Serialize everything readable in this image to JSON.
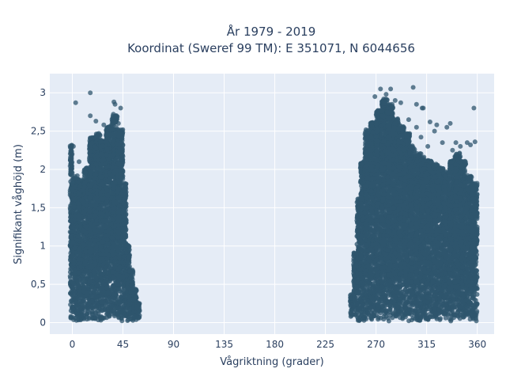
{
  "chart_data": {
    "type": "scatter",
    "title": "År 1979 - 2019",
    "subtitle": "Koordinat (Sweref 99 TM): E 351071, N 6044656",
    "xlabel": "Vågriktning (grader)",
    "ylabel": "Signifikant våghöjd (m)",
    "xlim": [
      -20,
      375
    ],
    "ylim": [
      -0.15,
      3.25
    ],
    "x_ticks": [
      0,
      45,
      90,
      135,
      180,
      225,
      270,
      315,
      360
    ],
    "x_tick_labels": [
      "0",
      "45",
      "90",
      "135",
      "180",
      "225",
      "270",
      "315",
      "360"
    ],
    "y_ticks": [
      0,
      0.5,
      1,
      1.5,
      2,
      2.5,
      3
    ],
    "y_tick_labels": [
      "0",
      "0,5",
      "1",
      "1,5",
      "2",
      "2,5",
      "3"
    ],
    "grid": true,
    "marker_color": "#2f566d",
    "density_profile": [
      {
        "x": [
          -2,
          0
        ],
        "ymax": 2.3
      },
      {
        "x": [
          0,
          5
        ],
        "ymax": 1.9
      },
      {
        "x": [
          5,
          10
        ],
        "ymax": 1.85
      },
      {
        "x": [
          10,
          15
        ],
        "ymax": 2.0
      },
      {
        "x": [
          15,
          20
        ],
        "ymax": 2.4
      },
      {
        "x": [
          20,
          25
        ],
        "ymax": 2.45
      },
      {
        "x": [
          25,
          30
        ],
        "ymax": 2.35
      },
      {
        "x": [
          30,
          35
        ],
        "ymax": 2.55
      },
      {
        "x": [
          35,
          40
        ],
        "ymax": 2.7
      },
      {
        "x": [
          40,
          45
        ],
        "ymax": 2.5
      },
      {
        "x": [
          45,
          48
        ],
        "ymax": 1.8
      },
      {
        "x": [
          48,
          51
        ],
        "ymax": 1.0
      },
      {
        "x": [
          51,
          54
        ],
        "ymax": 0.7
      },
      {
        "x": [
          54,
          57
        ],
        "ymax": 0.45
      },
      {
        "x": [
          57,
          60
        ],
        "ymax": 0.25
      },
      {
        "x": [
          247,
          250
        ],
        "ymax": 0.35
      },
      {
        "x": [
          250,
          253
        ],
        "ymax": 0.9
      },
      {
        "x": [
          253,
          256
        ],
        "ymax": 1.6
      },
      {
        "x": [
          256,
          260
        ],
        "ymax": 2.1
      },
      {
        "x": [
          260,
          265
        ],
        "ymax": 2.5
      },
      {
        "x": [
          265,
          270
        ],
        "ymax": 2.6
      },
      {
        "x": [
          270,
          275
        ],
        "ymax": 2.75
      },
      {
        "x": [
          275,
          280
        ],
        "ymax": 2.9
      },
      {
        "x": [
          280,
          285
        ],
        "ymax": 2.85
      },
      {
        "x": [
          285,
          290
        ],
        "ymax": 2.65
      },
      {
        "x": [
          290,
          295
        ],
        "ymax": 2.55
      },
      {
        "x": [
          295,
          300
        ],
        "ymax": 2.45
      },
      {
        "x": [
          300,
          305
        ],
        "ymax": 2.3
      },
      {
        "x": [
          305,
          310
        ],
        "ymax": 2.2
      },
      {
        "x": [
          310,
          315
        ],
        "ymax": 2.15
      },
      {
        "x": [
          315,
          320
        ],
        "ymax": 2.1
      },
      {
        "x": [
          320,
          325
        ],
        "ymax": 2.05
      },
      {
        "x": [
          325,
          330
        ],
        "ymax": 2.0
      },
      {
        "x": [
          330,
          335
        ],
        "ymax": 1.95
      },
      {
        "x": [
          335,
          340
        ],
        "ymax": 2.1
      },
      {
        "x": [
          340,
          345
        ],
        "ymax": 2.2
      },
      {
        "x": [
          345,
          350
        ],
        "ymax": 2.1
      },
      {
        "x": [
          350,
          355
        ],
        "ymax": 1.9
      },
      {
        "x": [
          355,
          360
        ],
        "ymax": 1.8
      }
    ],
    "outlier_points": [
      {
        "x": 3,
        "y": 2.87
      },
      {
        "x": 16,
        "y": 3.0
      },
      {
        "x": 1,
        "y": 2.3
      },
      {
        "x": 16,
        "y": 2.7
      },
      {
        "x": 21,
        "y": 2.63
      },
      {
        "x": 28,
        "y": 2.58
      },
      {
        "x": 37,
        "y": 2.88
      },
      {
        "x": 38,
        "y": 2.85
      },
      {
        "x": 43,
        "y": 2.8
      },
      {
        "x": 26,
        "y": 2.38
      },
      {
        "x": 6,
        "y": 2.1
      },
      {
        "x": 4,
        "y": 1.88
      },
      {
        "x": 34,
        "y": 2.45
      },
      {
        "x": 41,
        "y": 2.6
      },
      {
        "x": 269,
        "y": 2.95
      },
      {
        "x": 274,
        "y": 3.05
      },
      {
        "x": 279,
        "y": 2.98
      },
      {
        "x": 283,
        "y": 3.05
      },
      {
        "x": 287,
        "y": 2.9
      },
      {
        "x": 292,
        "y": 2.87
      },
      {
        "x": 303,
        "y": 3.07
      },
      {
        "x": 306,
        "y": 2.85
      },
      {
        "x": 311,
        "y": 2.8
      },
      {
        "x": 312,
        "y": 2.8
      },
      {
        "x": 318,
        "y": 2.62
      },
      {
        "x": 324,
        "y": 2.58
      },
      {
        "x": 333,
        "y": 2.55
      },
      {
        "x": 336,
        "y": 2.6
      },
      {
        "x": 357,
        "y": 2.8
      },
      {
        "x": 299,
        "y": 2.65
      },
      {
        "x": 306,
        "y": 2.55
      },
      {
        "x": 322,
        "y": 2.5
      },
      {
        "x": 329,
        "y": 2.35
      },
      {
        "x": 341,
        "y": 2.35
      },
      {
        "x": 345,
        "y": 2.3
      },
      {
        "x": 351,
        "y": 2.35
      },
      {
        "x": 354,
        "y": 2.32
      },
      {
        "x": 358,
        "y": 2.36
      },
      {
        "x": 310,
        "y": 2.42
      },
      {
        "x": 316,
        "y": 2.3
      },
      {
        "x": 338,
        "y": 2.25
      }
    ]
  }
}
